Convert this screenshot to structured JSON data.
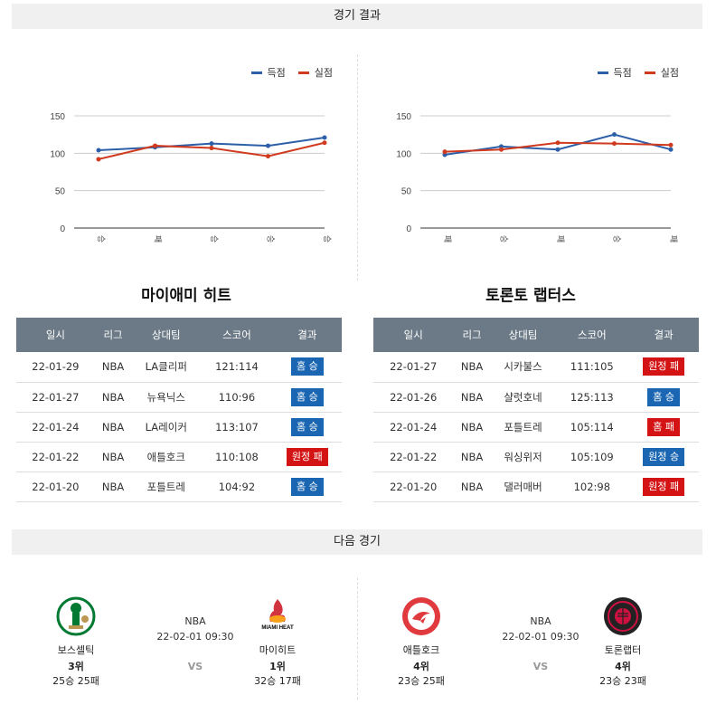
{
  "header": {
    "results_title": "경기 결과",
    "next_title": "다음 경기"
  },
  "colors": {
    "score": "#2d5fa8",
    "conceded": "#d03b1f"
  },
  "chart_data": [
    {
      "type": "line",
      "legend": [
        "득점",
        "실점"
      ],
      "categories": [
        "승",
        "패",
        "승",
        "승",
        "승"
      ],
      "yticks": [
        0,
        50,
        100,
        150
      ],
      "ylim": [
        0,
        150
      ],
      "series": [
        {
          "name": "득점",
          "values": [
            104,
            108,
            113,
            110,
            121
          ]
        },
        {
          "name": "실점",
          "values": [
            92,
            110,
            107,
            96,
            114
          ]
        }
      ]
    },
    {
      "type": "line",
      "legend": [
        "득점",
        "실점"
      ],
      "categories": [
        "패",
        "승",
        "패",
        "승",
        "패"
      ],
      "yticks": [
        0,
        50,
        100,
        150
      ],
      "ylim": [
        0,
        150
      ],
      "series": [
        {
          "name": "득점",
          "values": [
            98,
            109,
            105,
            125,
            105
          ]
        },
        {
          "name": "실점",
          "values": [
            102,
            105,
            114,
            113,
            111
          ]
        }
      ]
    }
  ],
  "tables": [
    {
      "team": "마이애미 히트",
      "headers": [
        "일시",
        "리그",
        "상대팀",
        "스코어",
        "결과"
      ],
      "rows": [
        {
          "date": "22-01-29",
          "league": "NBA",
          "opp": "LA클리퍼",
          "score": "121:114",
          "result": "홈 승",
          "win": true
        },
        {
          "date": "22-01-27",
          "league": "NBA",
          "opp": "뉴욕닉스",
          "score": "110:96",
          "result": "홈 승",
          "win": true
        },
        {
          "date": "22-01-24",
          "league": "NBA",
          "opp": "LA레이커",
          "score": "113:107",
          "result": "홈 승",
          "win": true
        },
        {
          "date": "22-01-22",
          "league": "NBA",
          "opp": "애틀호크",
          "score": "110:108",
          "result": "원정 패",
          "win": false
        },
        {
          "date": "22-01-20",
          "league": "NBA",
          "opp": "포틀트레",
          "score": "104:92",
          "result": "홈 승",
          "win": true
        }
      ]
    },
    {
      "team": "토론토 랩터스",
      "headers": [
        "일시",
        "리그",
        "상대팀",
        "스코어",
        "결과"
      ],
      "rows": [
        {
          "date": "22-01-27",
          "league": "NBA",
          "opp": "시카불스",
          "score": "111:105",
          "result": "원정 패",
          "win": false
        },
        {
          "date": "22-01-26",
          "league": "NBA",
          "opp": "샬럿호네",
          "score": "125:113",
          "result": "홈 승",
          "win": true
        },
        {
          "date": "22-01-24",
          "league": "NBA",
          "opp": "포틀트레",
          "score": "105:114",
          "result": "홈 패",
          "win": false
        },
        {
          "date": "22-01-22",
          "league": "NBA",
          "opp": "워싱위저",
          "score": "105:109",
          "result": "원정 승",
          "win": true
        },
        {
          "date": "22-01-20",
          "league": "NBA",
          "opp": "댈러매버",
          "score": "102:98",
          "result": "원정 패",
          "win": false
        }
      ]
    }
  ],
  "next_games": [
    {
      "league": "NBA",
      "datetime": "22-02-01 09:30",
      "vs": "VS",
      "home": {
        "name": "보스셀틱",
        "rank": "3위",
        "record": "25승 25패",
        "logo": "celtics-logo",
        "logo_color": "#007a33"
      },
      "away": {
        "name": "마이히트",
        "rank": "1위",
        "record": "32승 17패",
        "logo": "heat-logo",
        "logo_color": "#98002e",
        "wordmark": "MIAMI HEAT"
      }
    },
    {
      "league": "NBA",
      "datetime": "22-02-01 09:30",
      "vs": "VS",
      "home": {
        "name": "애틀호크",
        "rank": "4위",
        "record": "23승 25패",
        "logo": "hawks-logo",
        "logo_color": "#e03a3e"
      },
      "away": {
        "name": "토론랩터",
        "rank": "4위",
        "record": "23승 23패",
        "logo": "raptors-logo",
        "logo_color": "#222222"
      }
    }
  ]
}
